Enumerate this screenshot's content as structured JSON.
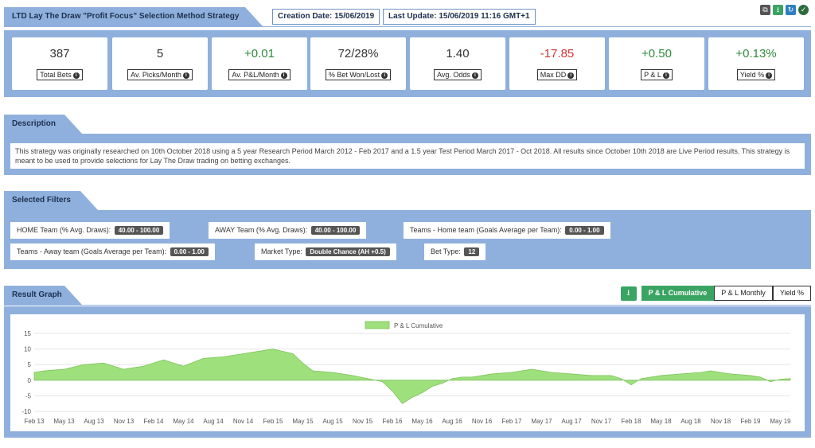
{
  "header": {
    "title": "LTD Lay The Draw \"Profit Focus\" Selection Method Strategy",
    "creation_date": "Creation Date: 15/06/2019",
    "last_update": "Last Update: 15/06/2019 11:16 GMT+1"
  },
  "top_icons": [
    "copy-icon",
    "download-icon",
    "refresh-icon",
    "shield-check-icon"
  ],
  "stats": [
    {
      "value": "387",
      "label": "Total Bets",
      "color": "#333333"
    },
    {
      "value": "5",
      "label": "Av. Picks/Month",
      "color": "#333333"
    },
    {
      "value": "+0.01",
      "label": "Av. P&L/Month",
      "color": "#2e8b3d"
    },
    {
      "value": "72/28%",
      "label": "% Bet Won/Lost",
      "color": "#333333"
    },
    {
      "value": "1.40",
      "label": "Avg. Odds",
      "color": "#333333"
    },
    {
      "value": "-17.85",
      "label": "Max DD",
      "color": "#d23333"
    },
    {
      "value": "+0.50",
      "label": "P & L",
      "color": "#2e8b3d"
    },
    {
      "value": "+0.13%",
      "label": "Yield %",
      "color": "#2e8b3d"
    }
  ],
  "description": {
    "title": "Description",
    "text": "This strategy was originally researched on 10th October 2018 using a 5 year Research Period March 2012 - Feb 2017 and a 1.5 year Test Period March 2017 - Oct 2018. All results since October 10th 2018 are Live Period results. This strategy is meant to be used to provide selections for Lay The Draw trading on betting exchanges."
  },
  "filters": {
    "title": "Selected Filters",
    "items": [
      {
        "label": "HOME Team (% Avg. Draws):",
        "value": "40.00 - 100.00"
      },
      {
        "label": "AWAY Team (% Avg. Draws):",
        "value": "40.00 - 100.00"
      },
      {
        "label": "Teams - Home team (Goals Average per Team):",
        "value": "0.00 - 1.00"
      },
      {
        "label": "Teams - Away team (Goals Average per Team):",
        "value": "0.00 - 1.00"
      },
      {
        "label": "Market Type:",
        "value": "Double Chance (AH +0.5)"
      },
      {
        "label": "Bet Type:",
        "value": "12"
      }
    ]
  },
  "graph": {
    "title": "Result Graph",
    "buttons": [
      "P & L Cumulative",
      "P & L Monthly",
      "Yield %"
    ],
    "active_button": "P & L Cumulative"
  },
  "chart_data": {
    "type": "area",
    "legend": [
      "P & L Cumulative"
    ],
    "legend_position": "top-center",
    "grid": true,
    "ylim": [
      -10,
      15
    ],
    "y_ticks": [
      "15",
      "10",
      "5",
      "0",
      "-5",
      "-10"
    ],
    "x_ticks": [
      "Feb 13",
      "May 13",
      "Aug 13",
      "Nov 13",
      "Feb 14",
      "May 14",
      "Aug 14",
      "Nov 14",
      "Feb 15",
      "May 15",
      "Aug 15",
      "Nov 15",
      "Feb 16",
      "May 16",
      "Aug 16",
      "Nov 16",
      "Feb 17",
      "May 17",
      "Aug 17",
      "Nov 17",
      "Feb 18",
      "May 18",
      "Aug 18",
      "Nov 18",
      "Feb 19",
      "May 19"
    ],
    "series": [
      {
        "name": "P & L Cumulative",
        "color": "#9ee07c",
        "x": [
          "2013-02",
          "2013-03",
          "2013-05",
          "2013-07",
          "2013-09",
          "2013-11",
          "2014-01",
          "2014-03",
          "2014-05",
          "2014-07",
          "2014-09",
          "2014-11",
          "2015-01",
          "2015-02",
          "2015-04",
          "2015-05",
          "2015-06",
          "2015-08",
          "2015-10",
          "2015-12",
          "2016-01",
          "2016-02",
          "2016-03",
          "2016-04",
          "2016-05",
          "2016-06",
          "2016-07",
          "2016-08",
          "2016-09",
          "2016-10",
          "2016-12",
          "2017-02",
          "2017-04",
          "2017-06",
          "2017-08",
          "2017-10",
          "2017-12",
          "2018-01",
          "2018-02",
          "2018-03",
          "2018-05",
          "2018-07",
          "2018-09",
          "2018-10",
          "2018-12",
          "2019-02",
          "2019-03",
          "2019-04",
          "2019-05",
          "2019-06"
        ],
        "values": [
          2.5,
          3.0,
          3.5,
          5.0,
          5.5,
          3.5,
          4.5,
          6.5,
          4.5,
          7.0,
          7.5,
          8.5,
          9.5,
          10.0,
          8.5,
          5.5,
          3.0,
          2.5,
          1.5,
          0.2,
          -0.5,
          -3.5,
          -7.5,
          -5.5,
          -4.0,
          -2.0,
          -1.0,
          0.5,
          1.0,
          1.0,
          2.0,
          2.5,
          3.5,
          2.5,
          2.0,
          1.5,
          1.5,
          0.5,
          -1.5,
          0.5,
          1.5,
          2.0,
          2.5,
          3.0,
          2.0,
          1.5,
          1.0,
          -0.5,
          0.3,
          0.5
        ]
      }
    ]
  }
}
